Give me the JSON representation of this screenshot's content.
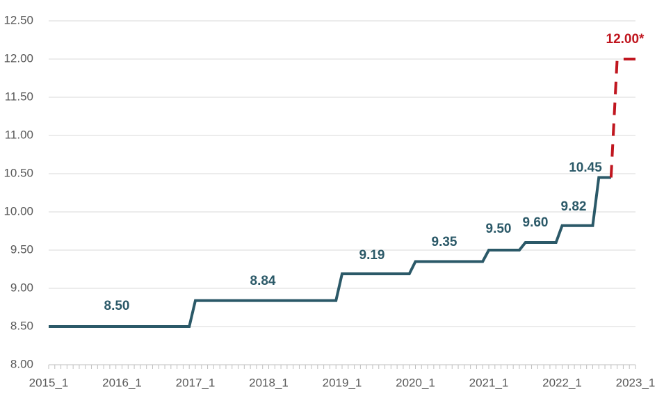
{
  "chart_data": {
    "type": "line",
    "categories": [
      "2015_1",
      null,
      null,
      null,
      null,
      null,
      null,
      null,
      null,
      null,
      null,
      null,
      "2016_1",
      null,
      null,
      null,
      null,
      null,
      null,
      null,
      null,
      null,
      null,
      null,
      "2017_1",
      null,
      null,
      null,
      null,
      null,
      null,
      null,
      null,
      null,
      null,
      null,
      "2018_1",
      null,
      null,
      null,
      null,
      null,
      null,
      null,
      null,
      null,
      null,
      null,
      "2019_1",
      null,
      null,
      null,
      null,
      null,
      null,
      null,
      null,
      null,
      null,
      null,
      "2020_1",
      null,
      null,
      null,
      null,
      null,
      null,
      null,
      null,
      null,
      null,
      null,
      "2021_1",
      null,
      null,
      null,
      null,
      null,
      null,
      null,
      null,
      null,
      null,
      null,
      "2022_1",
      null,
      null,
      null,
      null,
      null,
      null,
      null,
      null,
      null,
      null,
      null,
      "2023_1"
    ],
    "series": [
      {
        "color": "#2b5968",
        "dashed": false,
        "values": [
          8.5,
          8.5,
          8.5,
          8.5,
          8.5,
          8.5,
          8.5,
          8.5,
          8.5,
          8.5,
          8.5,
          8.5,
          8.5,
          8.5,
          8.5,
          8.5,
          8.5,
          8.5,
          8.5,
          8.5,
          8.5,
          8.5,
          8.5,
          8.5,
          8.84,
          8.84,
          8.84,
          8.84,
          8.84,
          8.84,
          8.84,
          8.84,
          8.84,
          8.84,
          8.84,
          8.84,
          8.84,
          8.84,
          8.84,
          8.84,
          8.84,
          8.84,
          8.84,
          8.84,
          8.84,
          8.84,
          8.84,
          8.84,
          9.19,
          9.19,
          9.19,
          9.19,
          9.19,
          9.19,
          9.19,
          9.19,
          9.19,
          9.19,
          9.19,
          9.19,
          9.35,
          9.35,
          9.35,
          9.35,
          9.35,
          9.35,
          9.35,
          9.35,
          9.35,
          9.35,
          9.35,
          9.35,
          9.5,
          9.5,
          9.5,
          9.5,
          9.5,
          9.5,
          9.6,
          9.6,
          9.6,
          9.6,
          9.6,
          9.6,
          9.82,
          9.82,
          9.82,
          9.82,
          9.82,
          9.82,
          10.45,
          10.45,
          10.45,
          null,
          null,
          null,
          null
        ]
      },
      {
        "color": "#c0161f",
        "dashed": true,
        "values": [
          null,
          null,
          null,
          null,
          null,
          null,
          null,
          null,
          null,
          null,
          null,
          null,
          null,
          null,
          null,
          null,
          null,
          null,
          null,
          null,
          null,
          null,
          null,
          null,
          null,
          null,
          null,
          null,
          null,
          null,
          null,
          null,
          null,
          null,
          null,
          null,
          null,
          null,
          null,
          null,
          null,
          null,
          null,
          null,
          null,
          null,
          null,
          null,
          null,
          null,
          null,
          null,
          null,
          null,
          null,
          null,
          null,
          null,
          null,
          null,
          null,
          null,
          null,
          null,
          null,
          null,
          null,
          null,
          null,
          null,
          null,
          null,
          null,
          null,
          null,
          null,
          null,
          null,
          null,
          null,
          null,
          null,
          null,
          null,
          null,
          null,
          null,
          null,
          null,
          null,
          null,
          null,
          10.45,
          12,
          12,
          12,
          12
        ]
      }
    ],
    "annotations": [
      "8.50",
      "8.84",
      "9.19",
      "9.35",
      "9.50",
      "9.60",
      "9.82",
      "10.45",
      "12.00*"
    ],
    "ylim": [
      8,
      12.5
    ],
    "yticks": [
      {
        "value": 8,
        "label": "8.00"
      },
      {
        "value": 8.5,
        "label": "8.50"
      },
      {
        "value": 9,
        "label": "9.00"
      },
      {
        "value": 9.5,
        "label": "9.50"
      },
      {
        "value": 10,
        "label": "10.00"
      },
      {
        "value": 10.5,
        "label": "10.50"
      },
      {
        "value": 11,
        "label": "11.00"
      },
      {
        "value": 11.5,
        "label": "11.50"
      },
      {
        "value": 12,
        "label": "12.00"
      },
      {
        "value": 12.5,
        "label": "12.50"
      }
    ],
    "grid": true
  }
}
